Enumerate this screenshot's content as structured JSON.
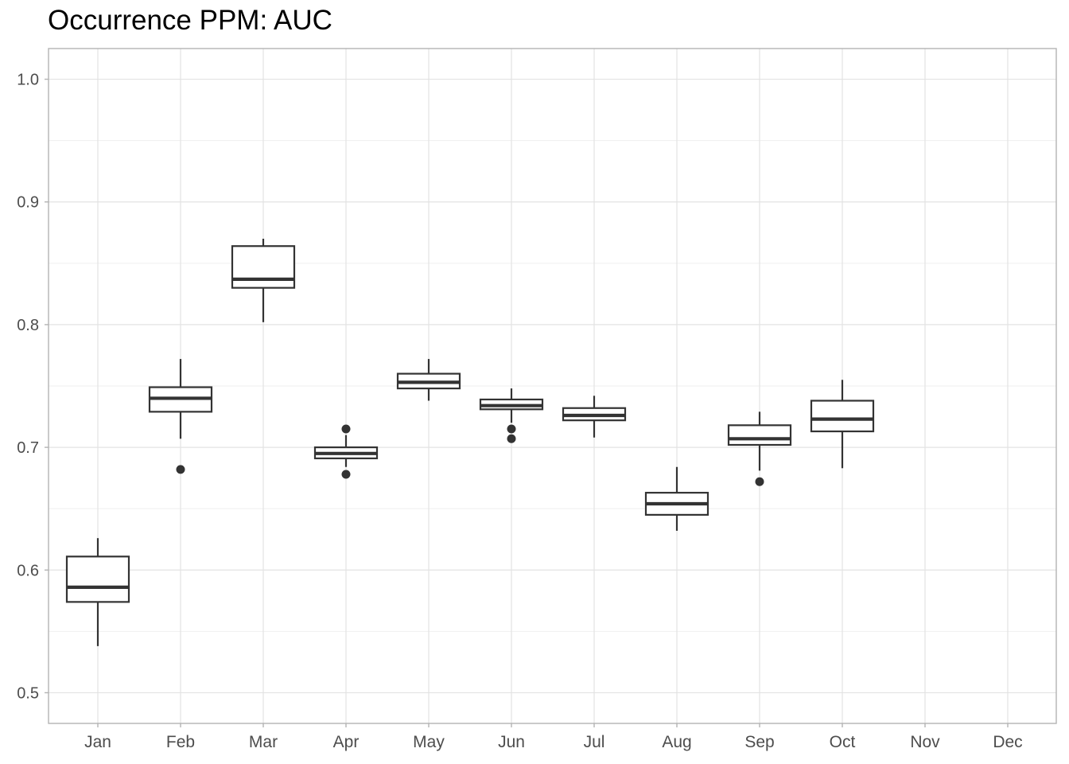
{
  "chart_data": {
    "type": "boxplot",
    "title": "Occurrence PPM: AUC",
    "xlabel": "",
    "ylabel": "",
    "categories": [
      "Jan",
      "Feb",
      "Mar",
      "Apr",
      "May",
      "Jun",
      "Jul",
      "Aug",
      "Sep",
      "Oct",
      "Nov",
      "Dec"
    ],
    "ylim": [
      0.475,
      1.025
    ],
    "y_ticks": [
      "0.5",
      "0.6",
      "0.7",
      "0.8",
      "0.9",
      "1.0"
    ],
    "grid": true,
    "legend": "none",
    "colors": {
      "box": "#333333",
      "grid_major": "#e3e3e3",
      "grid_minor": "#efefef",
      "panel_border": "#b3b3b3",
      "tick_text": "#4d4d4d"
    },
    "boxes": [
      {
        "category": "Jan",
        "whisker_low": 0.538,
        "q1": 0.574,
        "median": 0.586,
        "q3": 0.611,
        "whisker_high": 0.626,
        "outliers": []
      },
      {
        "category": "Feb",
        "whisker_low": 0.707,
        "q1": 0.729,
        "median": 0.74,
        "q3": 0.749,
        "whisker_high": 0.772,
        "outliers": [
          0.682
        ]
      },
      {
        "category": "Mar",
        "whisker_low": 0.802,
        "q1": 0.83,
        "median": 0.837,
        "q3": 0.864,
        "whisker_high": 0.87,
        "outliers": []
      },
      {
        "category": "Apr",
        "whisker_low": 0.684,
        "q1": 0.691,
        "median": 0.695,
        "q3": 0.7,
        "whisker_high": 0.71,
        "outliers": [
          0.715,
          0.678
        ]
      },
      {
        "category": "May",
        "whisker_low": 0.738,
        "q1": 0.748,
        "median": 0.753,
        "q3": 0.76,
        "whisker_high": 0.772,
        "outliers": []
      },
      {
        "category": "Jun",
        "whisker_low": 0.72,
        "q1": 0.731,
        "median": 0.734,
        "q3": 0.739,
        "whisker_high": 0.748,
        "outliers": [
          0.715,
          0.707
        ]
      },
      {
        "category": "Jul",
        "whisker_low": 0.708,
        "q1": 0.722,
        "median": 0.726,
        "q3": 0.732,
        "whisker_high": 0.742,
        "outliers": []
      },
      {
        "category": "Aug",
        "whisker_low": 0.632,
        "q1": 0.645,
        "median": 0.654,
        "q3": 0.663,
        "whisker_high": 0.684,
        "outliers": []
      },
      {
        "category": "Sep",
        "whisker_low": 0.681,
        "q1": 0.702,
        "median": 0.707,
        "q3": 0.718,
        "whisker_high": 0.729,
        "outliers": [
          0.672
        ]
      },
      {
        "category": "Oct",
        "whisker_low": 0.683,
        "q1": 0.713,
        "median": 0.723,
        "q3": 0.738,
        "whisker_high": 0.755,
        "outliers": []
      }
    ]
  }
}
